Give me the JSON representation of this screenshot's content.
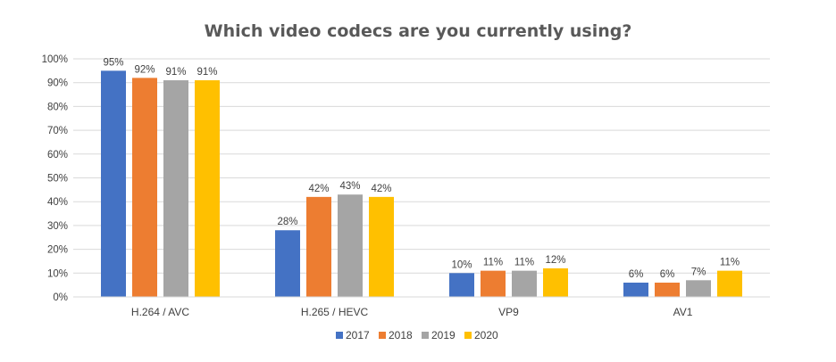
{
  "chart_data": {
    "type": "bar",
    "title": "Which video codecs are you currently using?",
    "categories": [
      "H.264 / AVC",
      "H.265 / HEVC",
      "VP9",
      "AV1"
    ],
    "series": [
      {
        "name": "2017",
        "color": "#4472C4",
        "values": [
          95,
          28,
          10,
          6
        ],
        "labels": [
          "95%",
          "28%",
          "10%",
          "6%"
        ]
      },
      {
        "name": "2018",
        "color": "#ED7D31",
        "values": [
          92,
          42,
          11,
          6
        ],
        "labels": [
          "92%",
          "42%",
          "11%",
          "6%"
        ]
      },
      {
        "name": "2019",
        "color": "#A5A5A5",
        "values": [
          91,
          43,
          11,
          7
        ],
        "labels": [
          "91%",
          "43%",
          "11%",
          "7%"
        ]
      },
      {
        "name": "2020",
        "color": "#FFC000",
        "values": [
          91,
          42,
          12,
          11
        ],
        "labels": [
          "91%",
          "42%",
          "12%",
          "11%"
        ]
      }
    ],
    "ylim": [
      0,
      100
    ],
    "yticks": [
      "0%",
      "10%",
      "20%",
      "30%",
      "40%",
      "50%",
      "60%",
      "70%",
      "80%",
      "90%",
      "100%"
    ],
    "grid": true,
    "legend": "bottom"
  }
}
